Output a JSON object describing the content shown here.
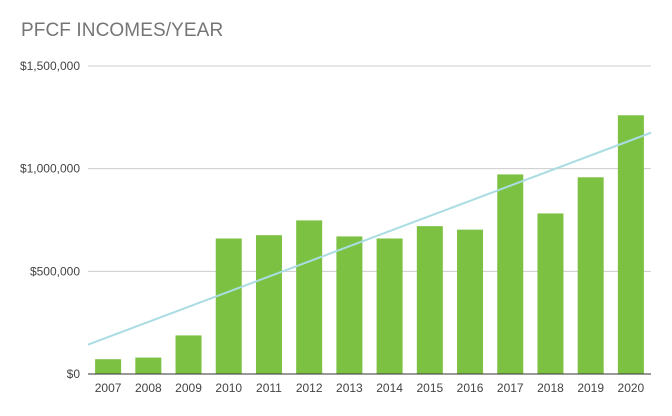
{
  "chart_data": {
    "type": "bar",
    "title": "PFCF INCOMES/YEAR",
    "xlabel": "",
    "ylabel": "",
    "categories": [
      "2007",
      "2008",
      "2009",
      "2010",
      "2011",
      "2012",
      "2013",
      "2014",
      "2015",
      "2016",
      "2017",
      "2018",
      "2019",
      "2020"
    ],
    "values": [
      72000,
      80000,
      188000,
      660000,
      676000,
      748000,
      670000,
      660000,
      720000,
      703000,
      972000,
      782000,
      958000,
      1260000
    ],
    "ylim": [
      0,
      1500000
    ],
    "yticks": [
      0,
      500000,
      1000000,
      1500000
    ],
    "ytick_labels": [
      "$0",
      "$500,000",
      "$1,000,000",
      "$1,500,000"
    ],
    "grid": true,
    "legend": "none",
    "trendline": {
      "type": "linear",
      "start_value": 143000,
      "end_value": 1175000
    },
    "colors": {
      "bar": "#7cc142",
      "trendline": "#a9dde3",
      "grid": "#cccccc",
      "baseline": "#333333"
    }
  }
}
